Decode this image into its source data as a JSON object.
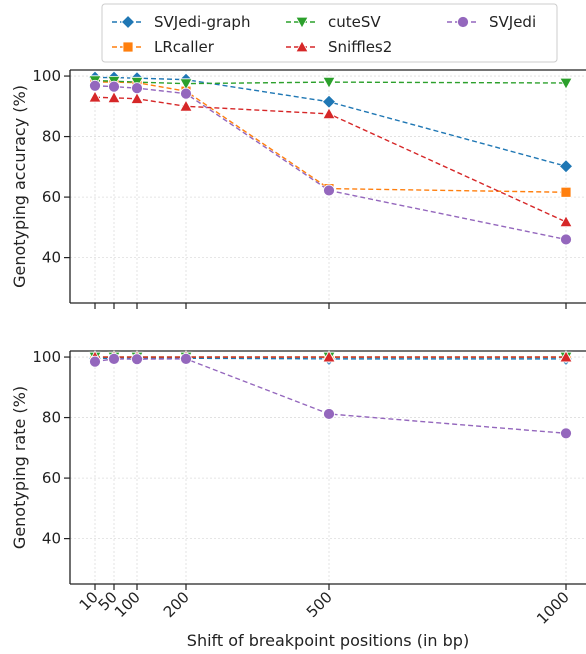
{
  "chart_data": [
    {
      "type": "line",
      "ylabel": "Genotyping accuracy (%)",
      "xlabel": "",
      "ylim": [
        25,
        102
      ],
      "yticks": [
        40,
        60,
        80,
        100
      ],
      "x": [
        10,
        50,
        100,
        200,
        500,
        1000
      ],
      "grid": true,
      "series": [
        {
          "name": "SVJedi-graph",
          "color": "#1f77b4",
          "marker": "diamond",
          "values": [
            99.5,
            99.5,
            99.3,
            98.8,
            91.5,
            70.2
          ]
        },
        {
          "name": "LRcaller",
          "color": "#ff7f0e",
          "marker": "square",
          "values": [
            98.0,
            98.0,
            97.8,
            95.0,
            62.8,
            61.6
          ]
        },
        {
          "name": "cuteSV",
          "color": "#2ca02c",
          "marker": "triangle-down",
          "values": [
            98.5,
            98.3,
            98.0,
            97.5,
            98.0,
            97.7
          ]
        },
        {
          "name": "Sniffles2",
          "color": "#d62728",
          "marker": "triangle-up",
          "values": [
            93.0,
            92.8,
            92.5,
            90.0,
            87.5,
            51.8
          ]
        },
        {
          "name": "SVJedi",
          "color": "#9467bd",
          "marker": "circle",
          "values": [
            96.8,
            96.5,
            96.0,
            94.2,
            62.2,
            46.0
          ]
        }
      ]
    },
    {
      "type": "line",
      "ylabel": "Genotyping rate (%)",
      "xlabel": "Shift of breakpoint positions (in bp)",
      "ylim": [
        25,
        102
      ],
      "yticks": [
        40,
        60,
        80,
        100
      ],
      "x": [
        10,
        50,
        100,
        200,
        500,
        1000
      ],
      "xticklabels": [
        "10",
        "50",
        "100",
        "200",
        "500",
        "1000"
      ],
      "grid": true,
      "series": [
        {
          "name": "SVJedi-graph",
          "color": "#1f77b4",
          "marker": "diamond",
          "values": [
            99.6,
            99.6,
            99.6,
            99.6,
            99.4,
            99.4
          ]
        },
        {
          "name": "LRcaller",
          "color": "#ff7f0e",
          "marker": "square",
          "values": [
            100,
            100,
            100,
            100,
            100,
            100
          ]
        },
        {
          "name": "cuteSV",
          "color": "#2ca02c",
          "marker": "triangle-down",
          "values": [
            100,
            100,
            100,
            100,
            100,
            100
          ]
        },
        {
          "name": "Sniffles2",
          "color": "#d62728",
          "marker": "triangle-up",
          "values": [
            100,
            100,
            100,
            100,
            100,
            100
          ]
        },
        {
          "name": "SVJedi",
          "color": "#9467bd",
          "marker": "circle",
          "values": [
            98.5,
            99.4,
            99.3,
            99.4,
            81.2,
            74.8
          ]
        }
      ]
    }
  ],
  "legend": {
    "placement": "top",
    "entries": [
      "SVJedi-graph",
      "cuteSV",
      "SVJedi",
      "LRcaller",
      "Sniffles2"
    ]
  }
}
